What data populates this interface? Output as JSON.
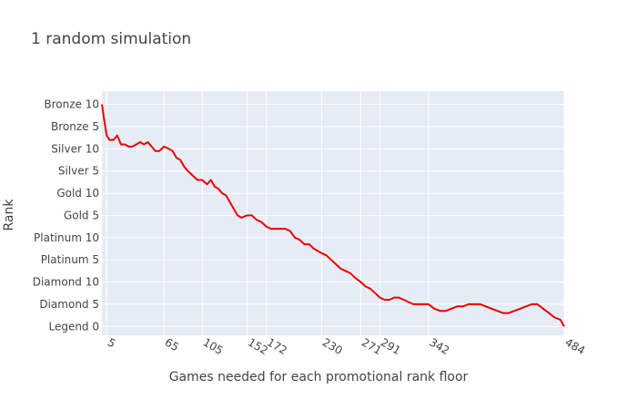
{
  "chart_data": {
    "type": "line",
    "title": "1 random simulation",
    "xlabel": "Games needed for each promotional rank floor",
    "ylabel": "Rank",
    "colors": {
      "line": "#ee0000",
      "plot_bg": "#e5ecf6",
      "grid": "#ffffff"
    },
    "grid": true,
    "legend": "none",
    "xlim": [
      0,
      484
    ],
    "x_ticks": [
      5,
      65,
      105,
      152,
      172,
      230,
      271,
      291,
      342,
      484
    ],
    "x_tick_labels": [
      "5",
      "65",
      "105",
      "152",
      "172",
      "230",
      "271",
      "291",
      "342",
      "484"
    ],
    "y_ticks": [
      0,
      5,
      10,
      15,
      20,
      25,
      30,
      35,
      40,
      45,
      50
    ],
    "y_tick_labels": [
      "Legend 0",
      "Diamond 5",
      "Diamond 10",
      "Platinum 5",
      "Platinum 10",
      "Gold 5",
      "Gold 10",
      "Silver 5",
      "Silver 10",
      "Bronze 5",
      "Bronze 10"
    ],
    "ylim": [
      -2,
      53
    ],
    "series": [
      {
        "x": [
          0,
          2,
          5,
          8,
          12,
          16,
          20,
          24,
          28,
          32,
          36,
          40,
          44,
          48,
          52,
          56,
          60,
          65,
          70,
          74,
          78,
          82,
          86,
          90,
          95,
          100,
          105,
          110,
          114,
          118,
          122,
          126,
          130,
          134,
          138,
          142,
          146,
          152,
          157,
          162,
          167,
          172,
          177,
          182,
          187,
          192,
          197,
          202,
          207,
          212,
          217,
          222,
          226,
          230,
          235,
          240,
          245,
          250,
          255,
          260,
          265,
          271,
          276,
          281,
          286,
          291,
          296,
          301,
          306,
          311,
          316,
          321,
          326,
          331,
          336,
          342,
          348,
          354,
          360,
          366,
          372,
          378,
          384,
          390,
          396,
          402,
          408,
          414,
          420,
          426,
          432,
          438,
          444,
          450,
          456,
          462,
          468,
          474,
          480,
          484
        ],
        "y": [
          50,
          47,
          43,
          42,
          42,
          43,
          41,
          41,
          40.5,
          40.5,
          41,
          41.5,
          41,
          41.5,
          40.5,
          39.5,
          39.5,
          40.5,
          40,
          39.5,
          38,
          37.5,
          36,
          35,
          34,
          33,
          33,
          32,
          33,
          31.5,
          31,
          30,
          29.5,
          28,
          26.5,
          25,
          24.5,
          25,
          25,
          24,
          23.5,
          22.5,
          22,
          22,
          22,
          22,
          21.5,
          20,
          19.5,
          18.5,
          18.5,
          17.5,
          17,
          16.5,
          16,
          15,
          14,
          13,
          12.5,
          12,
          11,
          10,
          9,
          8.5,
          7.5,
          6.5,
          6,
          6,
          6.5,
          6.5,
          6,
          5.5,
          5,
          5,
          5,
          5,
          4,
          3.5,
          3.5,
          4,
          4.5,
          4.5,
          5,
          5,
          5,
          4.5,
          4,
          3.5,
          3,
          3,
          3.5,
          4,
          4.5,
          5,
          5,
          4,
          3,
          2,
          1.5,
          0
        ]
      }
    ]
  }
}
